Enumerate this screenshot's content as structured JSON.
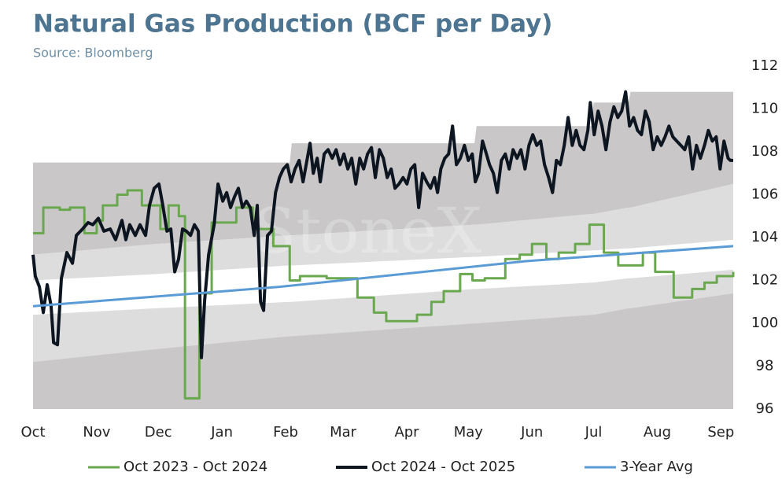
{
  "chart_data": {
    "type": "line",
    "title": "Natural Gas Production (BCF per Day)",
    "subtitle": "Source: Bloomberg",
    "watermark": "StoneX",
    "xlim": [
      0,
      341
    ],
    "xticks": [
      {
        "value": 0,
        "label": "Oct"
      },
      {
        "value": 31,
        "label": "Nov"
      },
      {
        "value": 61,
        "label": "Dec"
      },
      {
        "value": 92,
        "label": "Jan"
      },
      {
        "value": 123,
        "label": "Feb"
      },
      {
        "value": 151,
        "label": "Mar"
      },
      {
        "value": 182,
        "label": "Apr"
      },
      {
        "value": 212,
        "label": "May"
      },
      {
        "value": 243,
        "label": "Jun"
      },
      {
        "value": 273,
        "label": "Jul"
      },
      {
        "value": 304,
        "label": "Aug"
      },
      {
        "value": 335,
        "label": "Sep"
      }
    ],
    "ylim": [
      96,
      112
    ],
    "yticks": [
      96,
      98,
      100,
      102,
      104,
      106,
      108,
      110,
      112
    ],
    "legend": "bottom",
    "band_x": [
      0,
      60,
      125,
      126,
      215,
      216,
      272,
      273,
      290,
      291,
      341
    ],
    "bands": [
      {
        "color": "#c9c7c7",
        "upper": [
          107.5,
          107.5,
          107.5,
          108.4,
          108.4,
          109.2,
          109.2,
          110.3,
          110.3,
          110.8,
          110.8
        ],
        "lower": [
          103.2,
          103.7,
          104.1,
          104.1,
          104.6,
          104.6,
          105.1,
          105.1,
          105.4,
          105.4,
          106.5
        ]
      },
      {
        "color": "#dedddd",
        "upper": [
          103.2,
          103.7,
          104.1,
          104.1,
          104.6,
          104.6,
          105.1,
          105.1,
          105.4,
          105.4,
          106.5
        ],
        "lower": [
          102.0,
          102.3,
          102.7,
          102.7,
          103.1,
          103.1,
          103.4,
          103.4,
          103.5,
          103.5,
          103.9
        ]
      },
      {
        "color": "#dedddd",
        "upper": [
          100.4,
          100.7,
          101.0,
          101.0,
          101.6,
          101.6,
          101.9,
          101.9,
          102.1,
          102.1,
          102.5
        ],
        "lower": [
          98.2,
          98.8,
          99.4,
          99.4,
          100.0,
          100.0,
          100.4,
          100.4,
          100.7,
          100.7,
          101.4
        ]
      },
      {
        "color": "#c9c7c7",
        "upper": [
          98.2,
          98.8,
          99.4,
          99.4,
          100.0,
          100.0,
          100.4,
          100.4,
          100.7,
          100.7,
          101.4
        ],
        "lower": [
          96,
          96,
          96,
          96,
          96,
          96,
          96,
          96,
          96,
          96,
          96
        ]
      }
    ],
    "series": [
      {
        "name": "Oct 2023 - Oct 2024",
        "color": "#6aa84f",
        "width": 3,
        "step": "post",
        "x": [
          0,
          5,
          13,
          18,
          25,
          31,
          34,
          41,
          46,
          53,
          62,
          66,
          71,
          74,
          81,
          87,
          99,
          107,
          117,
          125,
          130,
          143,
          158,
          166,
          172,
          187,
          194,
          200,
          208,
          214,
          220,
          230,
          237,
          243,
          250,
          256,
          264,
          271,
          278,
          285,
          297,
          303,
          312,
          321,
          327,
          333,
          341
        ],
        "values": [
          104.2,
          105.4,
          105.3,
          105.4,
          104.2,
          104.8,
          105.5,
          106.0,
          106.2,
          105.5,
          104.4,
          105.5,
          105.0,
          96.5,
          101.4,
          104.7,
          105.4,
          104.4,
          103.6,
          102.0,
          102.2,
          102.1,
          101.2,
          100.5,
          100.1,
          100.4,
          101.0,
          101.5,
          102.3,
          102.0,
          102.1,
          103.0,
          103.2,
          103.7,
          103.0,
          103.3,
          103.7,
          104.6,
          103.3,
          102.7,
          103.3,
          102.4,
          101.2,
          101.6,
          101.9,
          102.2,
          102.4
        ]
      },
      {
        "name": "Oct 2024 - Oct 2025",
        "color": "#0d1520",
        "width": 4,
        "x": [
          0,
          1.1,
          3.1,
          5.0,
          6.9,
          8.8,
          10.0,
          11.9,
          13.8,
          16.5,
          19.2,
          21.1,
          24.1,
          26.8,
          29.1,
          31.8,
          34.5,
          37.6,
          40.2,
          43.3,
          45.2,
          47.1,
          49.8,
          52.1,
          54.8,
          56.7,
          59.0,
          61.3,
          63.2,
          65.2,
          67.1,
          69.0,
          70.9,
          72.8,
          74.7,
          76.7,
          78.6,
          80.5,
          82.0,
          83.6,
          85.5,
          88.2,
          90.1,
          92.4,
          94.3,
          96.2,
          98.1,
          100.0,
          102.0,
          103.9,
          105.8,
          107.7,
          109.2,
          110.8,
          112.3,
          114.2,
          116.1,
          118.1,
          120.0,
          121.9,
          123.8,
          125.7,
          127.6,
          129.6,
          131.5,
          133.4,
          134.9,
          136.5,
          138.4,
          139.9,
          141.8,
          143.7,
          145.7,
          147.6,
          149.5,
          151.4,
          153.3,
          155.2,
          157.2,
          159.1,
          161.0,
          162.9,
          164.8,
          166.7,
          168.7,
          170.6,
          172.5,
          174.4,
          176.3,
          178.2,
          180.2,
          182.1,
          184.0,
          185.9,
          187.8,
          189.7,
          191.7,
          193.6,
          195.5,
          197.0,
          198.6,
          200.5,
          202.4,
          204.3,
          206.2,
          208.1,
          210.1,
          212.0,
          213.9,
          215.4,
          217.0,
          218.9,
          220.8,
          222.3,
          224.2,
          226.1,
          228.1,
          230.0,
          231.9,
          233.8,
          235.7,
          237.6,
          239.6,
          241.5,
          243.4,
          245.3,
          247.2,
          249.1,
          251.1,
          253.0,
          254.9,
          256.8,
          258.7,
          260.6,
          262.6,
          264.5,
          266.4,
          268.3,
          270.2,
          271.4,
          273.3,
          275.2,
          277.1,
          279.0,
          281.0,
          282.9,
          284.8,
          286.7,
          288.6,
          290.5,
          292.5,
          294.4,
          296.3,
          298.2,
          300.1,
          302.0,
          304.0,
          305.9,
          307.8,
          309.7,
          311.6,
          313.5,
          315.5,
          317.4,
          319.3,
          321.2,
          323.1,
          325.0,
          327.0,
          328.9,
          330.8,
          332.7,
          334.6,
          336.5,
          338.5,
          339.6,
          341.0
        ],
        "values": [
          103.2,
          102.2,
          101.7,
          100.5,
          101.8,
          100.8,
          99.1,
          99.0,
          102.1,
          103.3,
          102.8,
          104.1,
          104.4,
          104.7,
          104.6,
          104.9,
          104.3,
          104.4,
          103.9,
          104.8,
          103.9,
          104.6,
          104.1,
          104.6,
          104.1,
          105.5,
          106.3,
          106.5,
          105.5,
          104.3,
          104.4,
          102.4,
          103.0,
          104.4,
          104.3,
          104.1,
          104.6,
          104.3,
          98.4,
          101.1,
          103.2,
          104.6,
          106.5,
          105.7,
          106.1,
          105.4,
          105.9,
          106.3,
          105.4,
          105.7,
          105.4,
          104.1,
          105.5,
          101.0,
          100.6,
          104.1,
          104.3,
          106.1,
          106.8,
          107.2,
          107.4,
          106.6,
          107.2,
          107.6,
          106.6,
          107.6,
          108.4,
          107.0,
          107.7,
          106.6,
          107.9,
          108.1,
          107.7,
          108.1,
          107.4,
          107.9,
          107.2,
          107.7,
          106.5,
          107.7,
          107.2,
          107.9,
          108.2,
          106.8,
          108.1,
          107.7,
          106.8,
          107.2,
          106.3,
          106.5,
          106.8,
          106.5,
          107.2,
          107.4,
          105.4,
          107.0,
          106.6,
          106.3,
          106.8,
          106.1,
          107.2,
          107.7,
          107.9,
          109.2,
          107.4,
          107.7,
          108.3,
          107.6,
          107.9,
          106.6,
          107.0,
          108.5,
          107.9,
          107.4,
          107.0,
          106.1,
          107.6,
          107.9,
          107.2,
          108.1,
          107.7,
          108.1,
          107.2,
          108.3,
          108.8,
          108.3,
          108.5,
          107.4,
          106.8,
          106.1,
          107.6,
          107.4,
          108.3,
          109.6,
          108.3,
          109.0,
          108.3,
          108.1,
          109.0,
          110.3,
          108.8,
          109.9,
          109.2,
          108.1,
          109.4,
          110.1,
          109.6,
          109.9,
          110.8,
          109.2,
          109.6,
          109.0,
          108.8,
          109.9,
          109.4,
          108.1,
          108.7,
          108.3,
          108.7,
          109.2,
          108.7,
          108.5,
          108.3,
          108.1,
          108.7,
          107.2,
          108.3,
          107.7,
          108.3,
          109.0,
          108.5,
          108.7,
          107.2,
          108.5,
          107.7,
          107.6,
          107.6
        ]
      },
      {
        "name": "3-Year Avg",
        "color": "#5b9bd5",
        "width": 3,
        "x": [
          0,
          120,
          240,
          341
        ],
        "values": [
          100.8,
          101.7,
          102.9,
          103.6
        ]
      }
    ]
  }
}
